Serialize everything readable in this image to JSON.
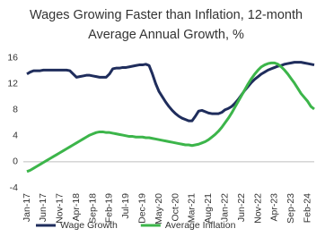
{
  "chart_data": {
    "type": "line",
    "title": "Wages Growing Faster than Inflation, 12-month  Average Annual Growth, %",
    "categories": [
      "Jan-17",
      null,
      null,
      null,
      null,
      "Jun-17",
      null,
      null,
      null,
      null,
      "Nov-17",
      null,
      null,
      null,
      null,
      "Apr-18",
      null,
      null,
      null,
      null,
      "Sep-18",
      null,
      null,
      null,
      null,
      "Feb-19",
      null,
      null,
      null,
      null,
      "Jul-19",
      null,
      null,
      null,
      null,
      "Dec-19",
      null,
      null,
      null,
      null,
      "May-20",
      null,
      null,
      null,
      null,
      "Oct-20",
      null,
      null,
      null,
      null,
      "Mar-21",
      null,
      null,
      null,
      null,
      "Aug-21",
      null,
      null,
      null,
      null,
      "Jan-22",
      null,
      null,
      null,
      null,
      "Jun-22",
      null,
      null,
      null,
      null,
      "Nov-22",
      null,
      null,
      null,
      null,
      "Apr-23",
      null,
      null,
      null,
      null,
      "Sep-23",
      null,
      null,
      null,
      null,
      "Feb-24",
      null,
      null
    ],
    "series": [
      {
        "name": "Wage Growth",
        "color": "#1f2d5c",
        "values": [
          13.5,
          13.8,
          14,
          14,
          14,
          14.1,
          14.1,
          14.1,
          14.1,
          14.1,
          14.1,
          14.1,
          14.1,
          14,
          13.5,
          13,
          13.1,
          13.2,
          13.3,
          13.3,
          13.2,
          13.1,
          13,
          13,
          13,
          13.5,
          14.3,
          14.4,
          14.4,
          14.5,
          14.5,
          14.6,
          14.7,
          14.8,
          14.9,
          14.9,
          15,
          14.8,
          13.5,
          12,
          10.8,
          10,
          9.2,
          8.5,
          7.9,
          7.4,
          7,
          6.7,
          6.5,
          6.3,
          6.3,
          7,
          7.8,
          7.9,
          7.7,
          7.5,
          7.4,
          7.4,
          7.4,
          7.6,
          8,
          8.2,
          8.5,
          9,
          9.6,
          10.3,
          11,
          11.6,
          12.2,
          12.7,
          13.1,
          13.5,
          13.8,
          14.1,
          14.3,
          14.5,
          14.7,
          14.8,
          15,
          15.1,
          15.2,
          15.3,
          15.3,
          15.3,
          15.2,
          15.1,
          15,
          14.9
        ]
      },
      {
        "name": "Average Inflation",
        "color": "#3cb54a",
        "values": [
          -1.5,
          -1.3,
          -1,
          -0.7,
          -0.4,
          -0.1,
          0.2,
          0.5,
          0.8,
          1.1,
          1.4,
          1.7,
          2,
          2.3,
          2.6,
          2.9,
          3.2,
          3.5,
          3.8,
          4.1,
          4.3,
          4.5,
          4.6,
          4.6,
          4.5,
          4.5,
          4.4,
          4.3,
          4.2,
          4.1,
          4,
          3.9,
          3.9,
          3.8,
          3.8,
          3.8,
          3.7,
          3.7,
          3.6,
          3.5,
          3.4,
          3.3,
          3.2,
          3.1,
          3,
          2.9,
          2.8,
          2.7,
          2.6,
          2.6,
          2.5,
          2.6,
          2.7,
          2.9,
          3.1,
          3.4,
          3.8,
          4.2,
          4.7,
          5.3,
          6,
          6.7,
          7.5,
          8.4,
          9.3,
          10.2,
          11.1,
          12,
          12.8,
          13.5,
          14.1,
          14.6,
          14.9,
          15.1,
          15.2,
          15.2,
          15,
          14.6,
          14.1,
          13.5,
          12.8,
          12.1,
          11.3,
          10.5,
          9.9,
          9.3,
          8.5,
          8.1
        ]
      }
    ],
    "ylim": [
      -4,
      18
    ],
    "yticks": [
      -4,
      0,
      4,
      8,
      12,
      16
    ],
    "grid": false,
    "legend": "bottom"
  }
}
